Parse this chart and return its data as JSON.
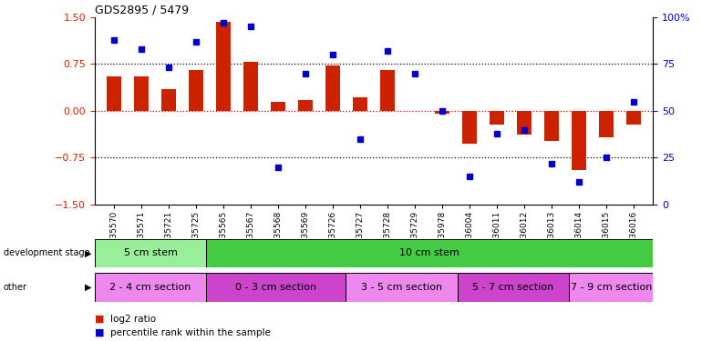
{
  "title": "GDS2895 / 5479",
  "samples": [
    "GSM35570",
    "GSM35571",
    "GSM35721",
    "GSM35725",
    "GSM35565",
    "GSM35567",
    "GSM35568",
    "GSM35569",
    "GSM35726",
    "GSM35727",
    "GSM35728",
    "GSM35729",
    "GSM35978",
    "GSM36004",
    "GSM36011",
    "GSM36012",
    "GSM36013",
    "GSM36014",
    "GSM36015",
    "GSM36016"
  ],
  "log2_ratio": [
    0.55,
    0.55,
    0.35,
    0.65,
    1.43,
    0.78,
    0.15,
    0.17,
    0.72,
    0.22,
    0.65,
    0.0,
    -0.05,
    -0.52,
    -0.22,
    -0.38,
    -0.48,
    -0.95,
    -0.42,
    -0.22
  ],
  "percentile": [
    88,
    83,
    73,
    87,
    97,
    95,
    20,
    70,
    80,
    35,
    82,
    70,
    50,
    15,
    38,
    40,
    22,
    12,
    25,
    55
  ],
  "dev_stage_groups": [
    {
      "label": "5 cm stem",
      "start": 0,
      "end": 4,
      "color": "#99EE99"
    },
    {
      "label": "10 cm stem",
      "start": 4,
      "end": 20,
      "color": "#44CC44"
    }
  ],
  "other_groups": [
    {
      "label": "2 - 4 cm section",
      "start": 0,
      "end": 4,
      "color": "#EE88EE"
    },
    {
      "label": "0 - 3 cm section",
      "start": 4,
      "end": 9,
      "color": "#CC44CC"
    },
    {
      "label": "3 - 5 cm section",
      "start": 9,
      "end": 13,
      "color": "#EE88EE"
    },
    {
      "label": "5 - 7 cm section",
      "start": 13,
      "end": 17,
      "color": "#CC44CC"
    },
    {
      "label": "7 - 9 cm section",
      "start": 17,
      "end": 20,
      "color": "#EE88EE"
    }
  ],
  "bar_color": "#CC2200",
  "dot_color": "#0000CC",
  "ylim_left": [
    -1.5,
    1.5
  ],
  "ylim_right": [
    0,
    100
  ],
  "yticks_left": [
    -1.5,
    -0.75,
    0,
    0.75,
    1.5
  ],
  "yticks_right": [
    0,
    25,
    50,
    75,
    100
  ],
  "hlines": [
    0.75,
    -0.75
  ],
  "zero_line_color": "#DD0000",
  "dotted_line_color": "black",
  "bg_color": "#ffffff"
}
